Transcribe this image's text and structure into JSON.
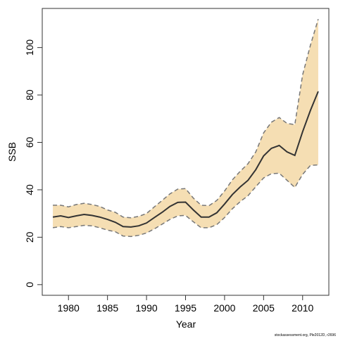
{
  "chart_data": {
    "type": "line",
    "x_label": "Year",
    "y_label": "SSB",
    "annotation": "stockassessment.org, Ple2012D, r2696",
    "x": [
      1978,
      1979,
      1980,
      1981,
      1982,
      1983,
      1984,
      1985,
      1986,
      1987,
      1988,
      1989,
      1990,
      1991,
      1992,
      1993,
      1994,
      1995,
      1996,
      1997,
      1998,
      1999,
      2000,
      2001,
      2002,
      2003,
      2004,
      2005,
      2006,
      2007,
      2008,
      2009,
      2010,
      2011,
      2012
    ],
    "values": [
      28.5,
      29,
      28.3,
      29,
      29.6,
      29.2,
      28.5,
      27.5,
      26.3,
      24.5,
      24.3,
      24.8,
      26,
      28.3,
      30.5,
      33,
      34.7,
      34.8,
      31.5,
      28.5,
      28.5,
      30.3,
      34,
      38,
      41.2,
      44,
      48.5,
      54.3,
      57.5,
      58.7,
      56,
      54.5,
      64.5,
      73.5,
      81.5
    ],
    "lower": [
      24,
      24.5,
      24,
      24.5,
      25,
      24.8,
      24,
      23,
      22.3,
      20.5,
      20.3,
      20.8,
      21.8,
      23.5,
      25.5,
      27.5,
      29,
      29.2,
      26.5,
      24,
      24,
      25.3,
      28.3,
      32,
      35,
      37.5,
      41.3,
      45,
      46.8,
      47,
      44,
      41,
      46.5,
      50.3,
      50.5
    ],
    "upper": [
      33.5,
      33.5,
      32.8,
      33.8,
      34.3,
      33.8,
      33,
      31.5,
      30.5,
      28.5,
      28.2,
      28.8,
      30,
      32.8,
      35.5,
      38.3,
      40.3,
      40.5,
      36.5,
      33.5,
      33.3,
      35.5,
      39.5,
      44.2,
      47.8,
      51,
      56,
      64,
      68.5,
      70.5,
      68,
      67.5,
      88.5,
      101,
      112
    ],
    "line_color": "#333333",
    "bound_color": "#777777",
    "band_color": "#f5deb3",
    "xlim": [
      1976.64,
      2013.36
    ],
    "ylim": [
      -4.5,
      116.5
    ],
    "xticks": [
      1980,
      1985,
      1990,
      1995,
      2000,
      2005,
      2010
    ],
    "yticks": [
      0,
      20,
      40,
      60,
      80,
      100
    ]
  }
}
